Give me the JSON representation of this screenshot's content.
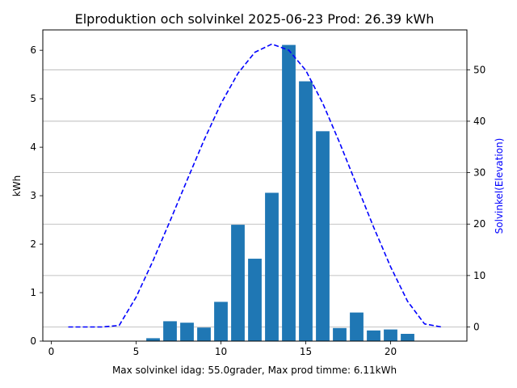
{
  "chart_data": {
    "type": "bar+line",
    "title": "Elproduktion och solvinkel 2025-06-23 Prod: 26.39 kWh",
    "xlabel": "Max solvinkel idag: 55.0grader, Max prod timme: 6.11kWh",
    "ylabel_left": "kWh",
    "ylabel_right": "Solvinkel(Elevation)",
    "xlim": [
      -0.5,
      24.5
    ],
    "ylim_left": [
      0,
      6.42
    ],
    "ylim_right": [
      -2.75,
      57.75
    ],
    "x_ticks": [
      0,
      5,
      10,
      15,
      20
    ],
    "y_ticks_left": [
      0,
      1,
      2,
      3,
      4,
      5,
      6
    ],
    "y_ticks_right": [
      0,
      10,
      20,
      30,
      40,
      50
    ],
    "grid": "horizontal, right axis",
    "bar_series": {
      "name": "kWh",
      "color": "#1f77b4",
      "x": [
        6,
        7,
        8,
        9,
        10,
        11,
        12,
        13,
        14,
        15,
        16,
        17,
        18,
        19,
        20,
        21
      ],
      "values": [
        0.06,
        0.41,
        0.38,
        0.28,
        0.81,
        2.4,
        1.7,
        3.06,
        6.11,
        5.36,
        4.33,
        0.27,
        0.59,
        0.22,
        0.24,
        0.15
      ]
    },
    "line_series": {
      "name": "Solvinkel",
      "color": "#0000ff",
      "style": "dashed",
      "x": [
        1,
        2,
        3,
        4,
        5,
        6,
        7,
        8,
        9,
        10,
        11,
        12,
        13,
        14,
        15,
        16,
        17,
        18,
        19,
        20,
        21,
        22,
        23
      ],
      "values": [
        0,
        0,
        0,
        0.3,
        5.8,
        12.9,
        20.6,
        28.5,
        36.3,
        43.4,
        49.3,
        53.4,
        55.0,
        53.8,
        49.9,
        43.5,
        35.8,
        27.6,
        19.4,
        11.7,
        5.0,
        0.6,
        0
      ]
    }
  }
}
